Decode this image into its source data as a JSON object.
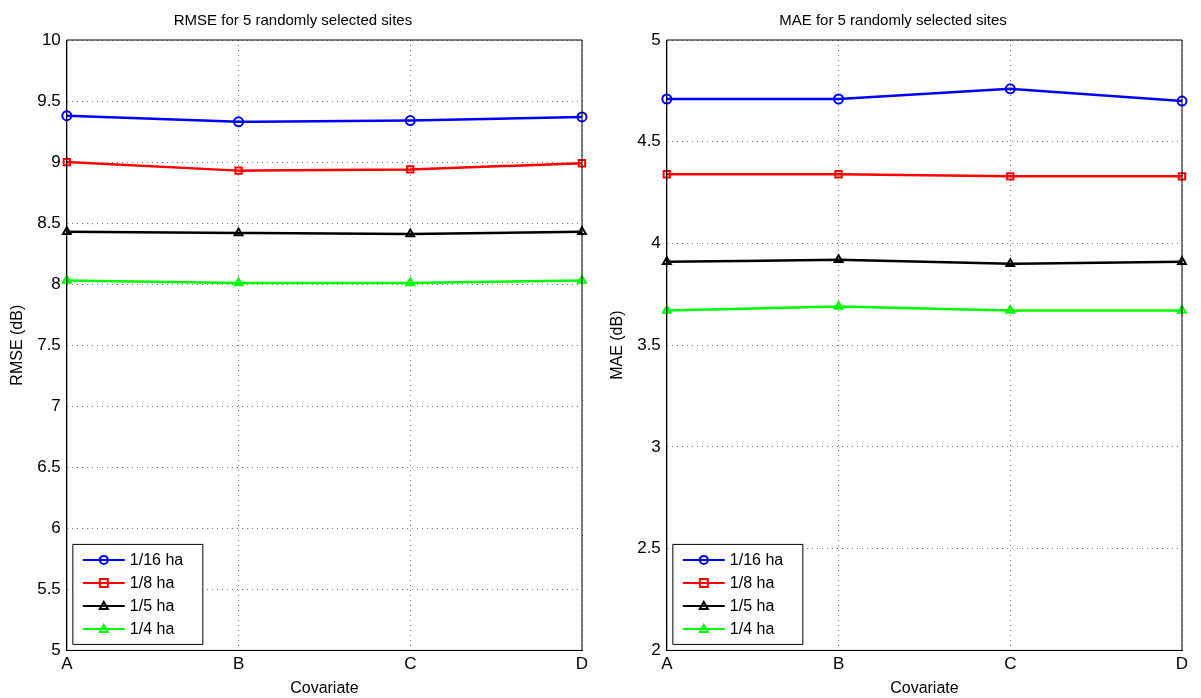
{
  "chart_data": [
    {
      "type": "line",
      "title": "RMSE for 5 randomly selected sites",
      "xlabel": "Covariate",
      "ylabel": "RMSE (dB)",
      "categories": [
        "A",
        "B",
        "C",
        "D"
      ],
      "ylim": [
        5,
        10
      ],
      "yticks": [
        5,
        5.5,
        6,
        6.5,
        7,
        7.5,
        8,
        8.5,
        9,
        9.5,
        10
      ],
      "grid": true,
      "legend": "bottom left",
      "line_style": "solid",
      "series": [
        {
          "name": "1/16 ha",
          "color": "#0000ff",
          "marker": "circle",
          "values": [
            9.38,
            9.33,
            9.34,
            9.37
          ]
        },
        {
          "name": "1/8 ha",
          "color": "#ff0000",
          "marker": "square",
          "values": [
            9.0,
            8.93,
            8.94,
            8.99
          ]
        },
        {
          "name": "1/5 ha",
          "color": "#000000",
          "marker": "triangle",
          "values": [
            8.43,
            8.42,
            8.41,
            8.43
          ]
        },
        {
          "name": "1/4 ha",
          "color": "#00ff00",
          "marker": "triangle",
          "values": [
            8.03,
            8.01,
            8.01,
            8.03
          ]
        }
      ]
    },
    {
      "type": "line",
      "title": "MAE for 5 randomly selected sites",
      "xlabel": "Covariate",
      "ylabel": "MAE (dB)",
      "categories": [
        "A",
        "B",
        "C",
        "D"
      ],
      "ylim": [
        2,
        5
      ],
      "yticks": [
        2,
        2.5,
        3,
        3.5,
        4,
        4.5,
        5
      ],
      "grid": true,
      "legend": "bottom left",
      "line_style": "solid",
      "series": [
        {
          "name": "1/16 ha",
          "color": "#0000ff",
          "marker": "circle",
          "values": [
            4.71,
            4.71,
            4.76,
            4.7
          ]
        },
        {
          "name": "1/8 ha",
          "color": "#ff0000",
          "marker": "square",
          "values": [
            4.34,
            4.34,
            4.33,
            4.33
          ]
        },
        {
          "name": "1/5 ha",
          "color": "#000000",
          "marker": "triangle",
          "values": [
            3.91,
            3.92,
            3.9,
            3.91
          ]
        },
        {
          "name": "1/4 ha",
          "color": "#00ff00",
          "marker": "triangle",
          "values": [
            3.67,
            3.69,
            3.67,
            3.67
          ]
        }
      ]
    }
  ]
}
